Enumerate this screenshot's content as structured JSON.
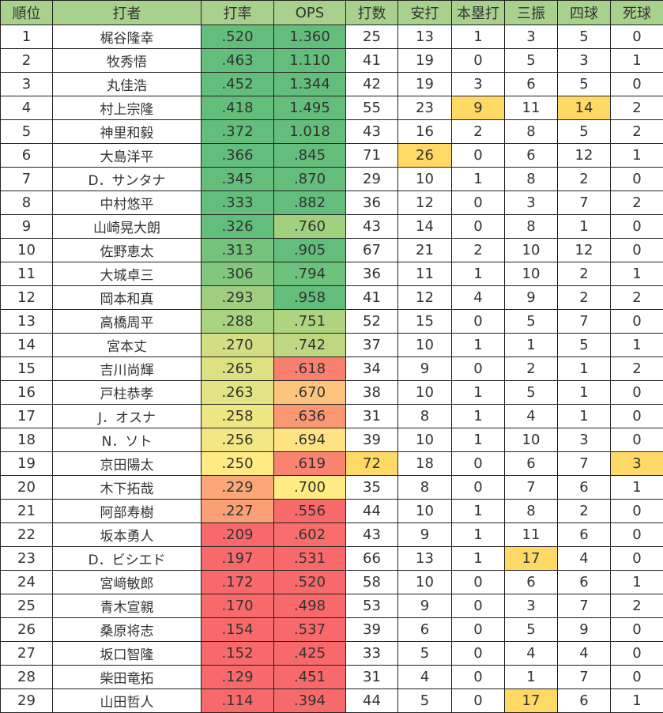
{
  "headers": [
    "順位",
    "打者",
    "打率",
    "OPS",
    "打数",
    "安打",
    "本塁打",
    "三振",
    "四球",
    "死球"
  ],
  "colors": {
    "header_bg": "#a9d18e",
    "highlight": "#ffd966",
    "scale_low": "#f8696b",
    "scale_mid": "#ffeb84",
    "scale_high": "#63be7b"
  },
  "color_scales": {
    "avg": {
      "low": 0.21,
      "mid": 0.25,
      "high": 0.32
    },
    "ops": {
      "low": 0.6,
      "mid": 0.7,
      "high": 0.8
    }
  },
  "rows": [
    {
      "rank": "1",
      "name": "梶谷隆幸",
      "avg": ".520",
      "ops": "1.360",
      "ab": "25",
      "h": "13",
      "hr": "1",
      "so": "3",
      "bb": "5",
      "hbp": "0"
    },
    {
      "rank": "2",
      "name": "牧秀悟",
      "avg": ".463",
      "ops": "1.110",
      "ab": "41",
      "h": "19",
      "hr": "0",
      "so": "5",
      "bb": "3",
      "hbp": "1"
    },
    {
      "rank": "3",
      "name": "丸佳浩",
      "avg": ".452",
      "ops": "1.344",
      "ab": "42",
      "h": "19",
      "hr": "3",
      "so": "6",
      "bb": "5",
      "hbp": "0"
    },
    {
      "rank": "4",
      "name": "村上宗隆",
      "avg": ".418",
      "ops": "1.495",
      "ab": "55",
      "h": "23",
      "hr": "9",
      "so": "11",
      "bb": "14",
      "hbp": "2",
      "highlight": [
        "hr",
        "bb"
      ]
    },
    {
      "rank": "5",
      "name": "神里和毅",
      "avg": ".372",
      "ops": "1.018",
      "ab": "43",
      "h": "16",
      "hr": "2",
      "so": "8",
      "bb": "5",
      "hbp": "2"
    },
    {
      "rank": "6",
      "name": "大島洋平",
      "avg": ".366",
      "ops": ".845",
      "ab": "71",
      "h": "26",
      "hr": "0",
      "so": "6",
      "bb": "12",
      "hbp": "1",
      "highlight": [
        "h"
      ]
    },
    {
      "rank": "7",
      "name": "D．サンタナ",
      "avg": ".345",
      "ops": ".870",
      "ab": "29",
      "h": "10",
      "hr": "1",
      "so": "8",
      "bb": "2",
      "hbp": "0"
    },
    {
      "rank": "8",
      "name": "中村悠平",
      "avg": ".333",
      "ops": ".882",
      "ab": "36",
      "h": "12",
      "hr": "0",
      "so": "3",
      "bb": "7",
      "hbp": "2"
    },
    {
      "rank": "9",
      "name": "山崎晃大朗",
      "avg": ".326",
      "ops": ".760",
      "ab": "43",
      "h": "14",
      "hr": "0",
      "so": "8",
      "bb": "1",
      "hbp": "0"
    },
    {
      "rank": "10",
      "name": "佐野恵太",
      "avg": ".313",
      "ops": ".905",
      "ab": "67",
      "h": "21",
      "hr": "2",
      "so": "10",
      "bb": "12",
      "hbp": "0"
    },
    {
      "rank": "11",
      "name": "大城卓三",
      "avg": ".306",
      "ops": ".794",
      "ab": "36",
      "h": "11",
      "hr": "1",
      "so": "10",
      "bb": "2",
      "hbp": "1"
    },
    {
      "rank": "12",
      "name": "岡本和真",
      "avg": ".293",
      "ops": ".958",
      "ab": "41",
      "h": "12",
      "hr": "4",
      "so": "9",
      "bb": "2",
      "hbp": "2"
    },
    {
      "rank": "13",
      "name": "高橋周平",
      "avg": ".288",
      "ops": ".751",
      "ab": "52",
      "h": "15",
      "hr": "0",
      "so": "5",
      "bb": "7",
      "hbp": "0"
    },
    {
      "rank": "14",
      "name": "宮本丈",
      "avg": ".270",
      "ops": ".742",
      "ab": "37",
      "h": "10",
      "hr": "1",
      "so": "1",
      "bb": "5",
      "hbp": "1"
    },
    {
      "rank": "15",
      "name": "吉川尚輝",
      "avg": ".265",
      "ops": ".618",
      "ab": "34",
      "h": "9",
      "hr": "0",
      "so": "2",
      "bb": "1",
      "hbp": "2"
    },
    {
      "rank": "16",
      "name": "戸柱恭孝",
      "avg": ".263",
      "ops": ".670",
      "ab": "38",
      "h": "10",
      "hr": "1",
      "so": "5",
      "bb": "1",
      "hbp": "0"
    },
    {
      "rank": "17",
      "name": "J．オスナ",
      "avg": ".258",
      "ops": ".636",
      "ab": "31",
      "h": "8",
      "hr": "1",
      "so": "4",
      "bb": "1",
      "hbp": "0"
    },
    {
      "rank": "18",
      "name": "N．ソト",
      "avg": ".256",
      "ops": ".694",
      "ab": "39",
      "h": "10",
      "hr": "1",
      "so": "10",
      "bb": "3",
      "hbp": "0"
    },
    {
      "rank": "19",
      "name": "京田陽太",
      "avg": ".250",
      "ops": ".619",
      "ab": "72",
      "h": "18",
      "hr": "0",
      "so": "6",
      "bb": "7",
      "hbp": "3",
      "highlight": [
        "ab",
        "hbp"
      ]
    },
    {
      "rank": "20",
      "name": "木下拓哉",
      "avg": ".229",
      "ops": ".700",
      "ab": "35",
      "h": "8",
      "hr": "0",
      "so": "7",
      "bb": "6",
      "hbp": "1"
    },
    {
      "rank": "21",
      "name": "阿部寿樹",
      "avg": ".227",
      "ops": ".556",
      "ab": "44",
      "h": "10",
      "hr": "1",
      "so": "8",
      "bb": "2",
      "hbp": "0"
    },
    {
      "rank": "22",
      "name": "坂本勇人",
      "avg": ".209",
      "ops": ".602",
      "ab": "43",
      "h": "9",
      "hr": "1",
      "so": "11",
      "bb": "6",
      "hbp": "0"
    },
    {
      "rank": "23",
      "name": "D．ビシエド",
      "avg": ".197",
      "ops": ".531",
      "ab": "66",
      "h": "13",
      "hr": "1",
      "so": "17",
      "bb": "4",
      "hbp": "0",
      "highlight": [
        "so"
      ]
    },
    {
      "rank": "24",
      "name": "宮﨑敏郎",
      "avg": ".172",
      "ops": ".520",
      "ab": "58",
      "h": "10",
      "hr": "0",
      "so": "6",
      "bb": "6",
      "hbp": "1"
    },
    {
      "rank": "25",
      "name": "青木宣親",
      "avg": ".170",
      "ops": ".498",
      "ab": "53",
      "h": "9",
      "hr": "0",
      "so": "3",
      "bb": "7",
      "hbp": "2"
    },
    {
      "rank": "26",
      "name": "桑原将志",
      "avg": ".154",
      "ops": ".537",
      "ab": "39",
      "h": "6",
      "hr": "0",
      "so": "5",
      "bb": "9",
      "hbp": "0"
    },
    {
      "rank": "27",
      "name": "坂口智隆",
      "avg": ".152",
      "ops": ".425",
      "ab": "33",
      "h": "5",
      "hr": "0",
      "so": "4",
      "bb": "4",
      "hbp": "0"
    },
    {
      "rank": "28",
      "name": "柴田竜拓",
      "avg": ".129",
      "ops": ".451",
      "ab": "31",
      "h": "4",
      "hr": "0",
      "so": "1",
      "bb": "7",
      "hbp": "0"
    },
    {
      "rank": "29",
      "name": "山田哲人",
      "avg": ".114",
      "ops": ".394",
      "ab": "44",
      "h": "5",
      "hr": "0",
      "so": "17",
      "bb": "6",
      "hbp": "1",
      "highlight": [
        "so"
      ]
    }
  ]
}
